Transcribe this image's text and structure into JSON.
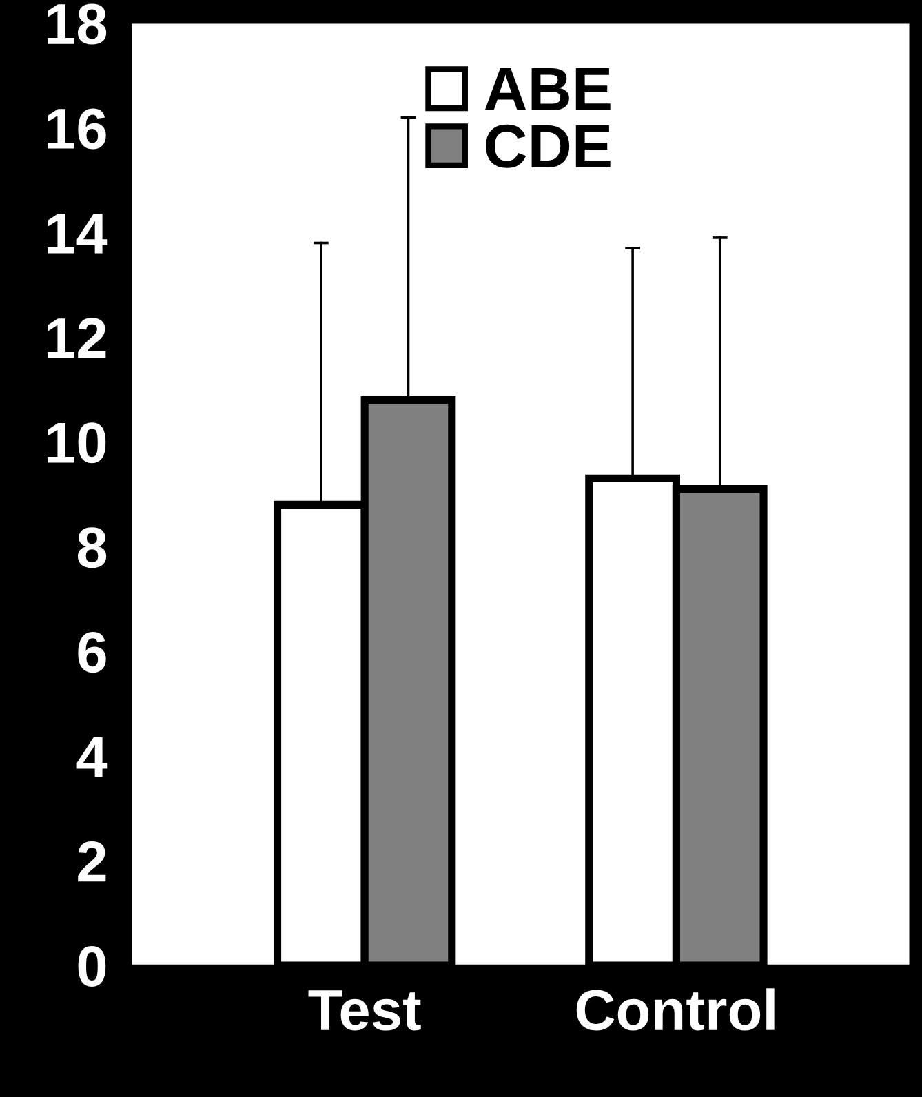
{
  "chart_data": {
    "type": "bar",
    "categories": [
      "Test",
      "Control"
    ],
    "series": [
      {
        "name": "ABE",
        "color": "#ffffff",
        "values": [
          8.8,
          9.3
        ],
        "errors": [
          [
            8.8,
            13.8
          ],
          [
            9.3,
            13.7
          ]
        ]
      },
      {
        "name": "CDE",
        "color": "#808080",
        "values": [
          10.8,
          9.1
        ],
        "errors": [
          [
            10.8,
            16.2
          ],
          [
            9.1,
            13.9
          ]
        ]
      }
    ],
    "ylim": [
      0,
      18
    ],
    "yticks": [
      0,
      2,
      4,
      6,
      8,
      10,
      12,
      14,
      16,
      18
    ],
    "grid": false,
    "legend": "top"
  }
}
